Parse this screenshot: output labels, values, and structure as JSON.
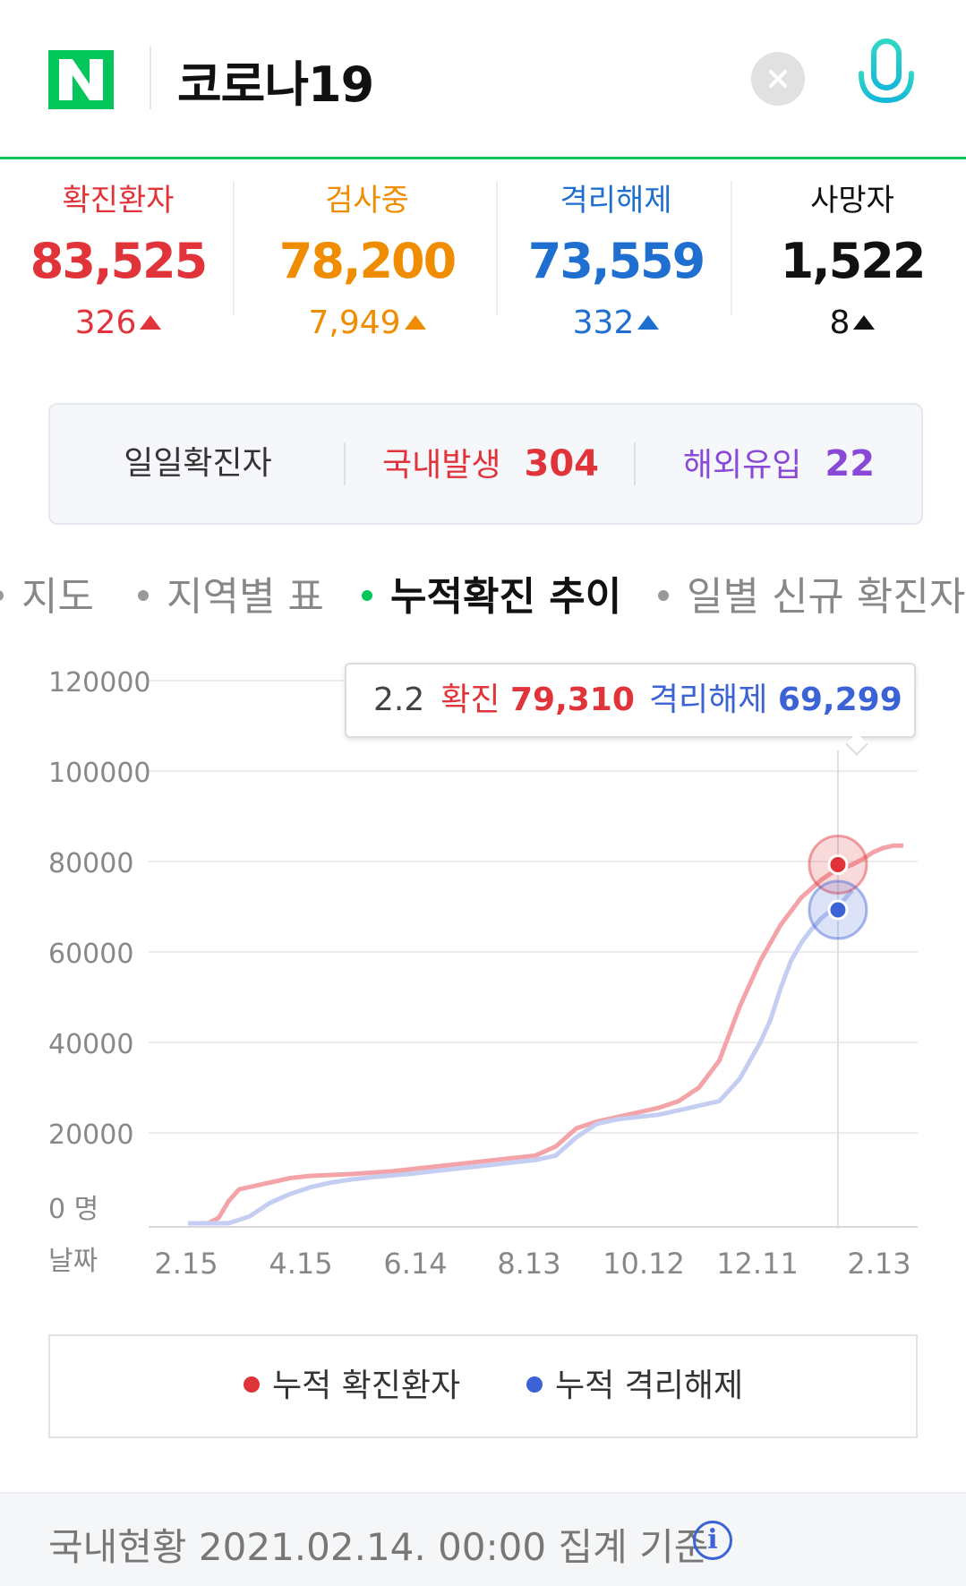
{
  "header": {
    "query": "코로나19",
    "logo_letter": "N"
  },
  "stats": [
    {
      "label": "확진환자",
      "value": "83,525",
      "change": "326",
      "color": "#e0343a"
    },
    {
      "label": "검사중",
      "value": "78,200",
      "change": "7,949",
      "color": "#f08c00"
    },
    {
      "label": "격리해제",
      "value": "73,559",
      "change": "332",
      "color": "#1f6fd1"
    },
    {
      "label": "사망자",
      "value": "1,522",
      "change": "8",
      "color": "#111111"
    }
  ],
  "daily": {
    "title": "일일확진자",
    "domestic_label": "국내발생",
    "domestic_value": "304",
    "overseas_label": "해외유입",
    "overseas_value": "22"
  },
  "tabs": [
    "지도",
    "지역별 표",
    "누적확진 추이",
    "일별 신규 확진자"
  ],
  "active_tab": 2,
  "tooltip": {
    "date": "2.2",
    "confirmed_label": "확진",
    "confirmed_value": "79,310",
    "released_label": "격리해제",
    "released_value": "69,299"
  },
  "chart_data": {
    "type": "line",
    "y_ticks": [
      "120000",
      "100000",
      "80000",
      "60000",
      "40000",
      "20000",
      "0 명"
    ],
    "x_label": "날짜",
    "x_ticks": [
      "2.15",
      "4.15",
      "6.14",
      "8.13",
      "10.12",
      "12.11",
      "2.13"
    ],
    "ylim": [
      0,
      120000
    ],
    "grid": true,
    "series": [
      {
        "name": "누적 확진환자",
        "color": "#f4a3a8",
        "x": [
          0,
          5,
          10,
          15,
          20,
          25,
          30,
          40,
          50,
          60,
          70,
          80,
          90,
          100,
          110,
          120,
          130,
          140,
          150,
          160,
          170,
          180,
          185,
          190,
          200,
          210,
          220,
          230,
          240,
          250,
          260,
          270,
          280,
          285,
          290,
          295,
          300,
          305,
          310,
          315,
          320,
          325,
          330,
          335,
          340,
          345,
          350
        ],
        "values": [
          0,
          0,
          30,
          1200,
          5000,
          7500,
          8000,
          9000,
          10000,
          10500,
          10700,
          10900,
          11200,
          11500,
          12000,
          12500,
          13000,
          13500,
          14000,
          14500,
          15000,
          17000,
          19000,
          21000,
          22500,
          23500,
          24500,
          25500,
          27000,
          30000,
          36000,
          48000,
          58000,
          62000,
          66000,
          69000,
          72000,
          74000,
          76000,
          77500,
          78500,
          79310,
          80500,
          82000,
          83000,
          83500,
          83525
        ]
      },
      {
        "name": "누적 격리해제",
        "color": "#c4cdf2",
        "x": [
          0,
          10,
          20,
          30,
          40,
          50,
          60,
          70,
          80,
          90,
          100,
          110,
          120,
          130,
          140,
          150,
          160,
          170,
          180,
          190,
          200,
          210,
          220,
          230,
          240,
          250,
          260,
          270,
          280,
          285,
          290,
          295,
          300,
          305,
          310,
          315,
          320,
          325
        ],
        "values": [
          0,
          0,
          10,
          1500,
          4500,
          6500,
          8000,
          9000,
          9700,
          10200,
          10600,
          11000,
          11500,
          12000,
          12500,
          13000,
          13500,
          14000,
          15000,
          19000,
          22000,
          23000,
          23500,
          24000,
          25000,
          26000,
          27000,
          32000,
          40000,
          45000,
          52000,
          58000,
          62000,
          65000,
          67500,
          69299,
          71000,
          73559
        ]
      }
    ],
    "highlight_index_x": 318
  },
  "legend": [
    {
      "label": "누적 확진환자",
      "color": "#e0343a"
    },
    {
      "label": "누적 격리해제",
      "color": "#3b63d6"
    }
  ],
  "footer": {
    "text": "국내현황 2021.02.14. 00:00 집계 기준",
    "info": "i"
  }
}
